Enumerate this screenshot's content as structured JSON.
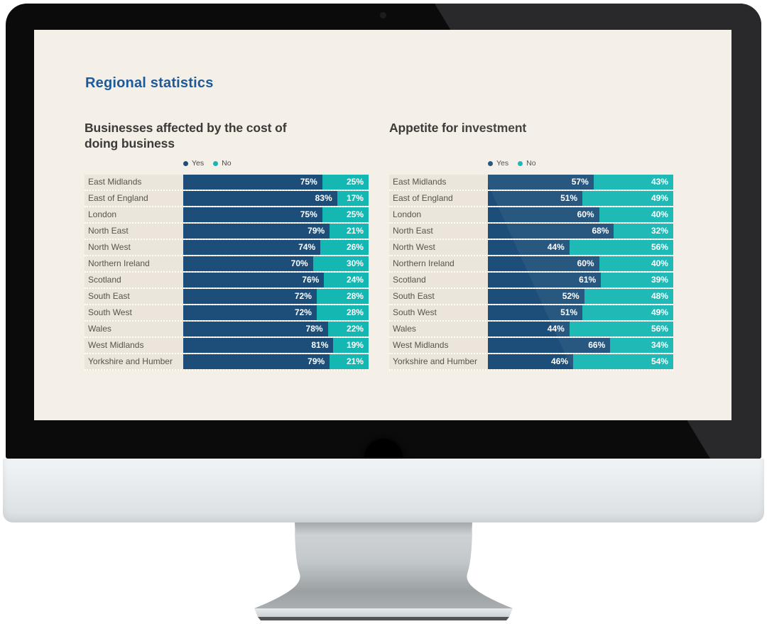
{
  "page": {
    "heading": "Regional statistics"
  },
  "legend": {
    "yes_label": "Yes",
    "no_label": "No"
  },
  "colors": {
    "yes": "#1d4e79",
    "no": "#15b7b3",
    "heading_blue": "#1d5a99",
    "chart_title_text": "#3b3a38",
    "row_label_text": "#57544e",
    "screen_background": "#f4efe7",
    "row_strip_background": "#ebe5dc",
    "monitor_bezel": "#0b0b0c",
    "monitor_chin_silver": "#dde2e5"
  },
  "chart_data": [
    {
      "type": "bar",
      "stacked": true,
      "title": "Businesses affected by the cost of doing business",
      "unit": "%",
      "xlim": [
        0,
        100
      ],
      "legend_position": "top-left-of-bars",
      "categories": [
        "East Midlands",
        "East of England",
        "London",
        "North East",
        "North West",
        "Northern Ireland",
        "Scotland",
        "South East",
        "South West",
        "Wales",
        "West Midlands",
        "Yorkshire and Humber"
      ],
      "series": [
        {
          "name": "Yes",
          "color": "#1d4e79",
          "values": [
            75,
            83,
            75,
            79,
            74,
            70,
            76,
            72,
            72,
            78,
            81,
            79
          ]
        },
        {
          "name": "No",
          "color": "#15b7b3",
          "values": [
            25,
            17,
            25,
            21,
            26,
            30,
            24,
            28,
            28,
            22,
            19,
            21
          ]
        }
      ]
    },
    {
      "type": "bar",
      "stacked": true,
      "title": "Appetite for investment",
      "unit": "%",
      "xlim": [
        0,
        100
      ],
      "legend_position": "top-left-of-bars",
      "categories": [
        "East Midlands",
        "East of England",
        "London",
        "North East",
        "North West",
        "Northern Ireland",
        "Scotland",
        "South East",
        "South West",
        "Wales",
        "West Midlands",
        "Yorkshire and Humber"
      ],
      "series": [
        {
          "name": "Yes",
          "color": "#1d4e79",
          "values": [
            57,
            51,
            60,
            68,
            44,
            60,
            61,
            52,
            51,
            44,
            66,
            46
          ]
        },
        {
          "name": "No",
          "color": "#15b7b3",
          "values": [
            43,
            49,
            40,
            32,
            56,
            40,
            39,
            48,
            49,
            56,
            34,
            54
          ]
        }
      ]
    }
  ]
}
